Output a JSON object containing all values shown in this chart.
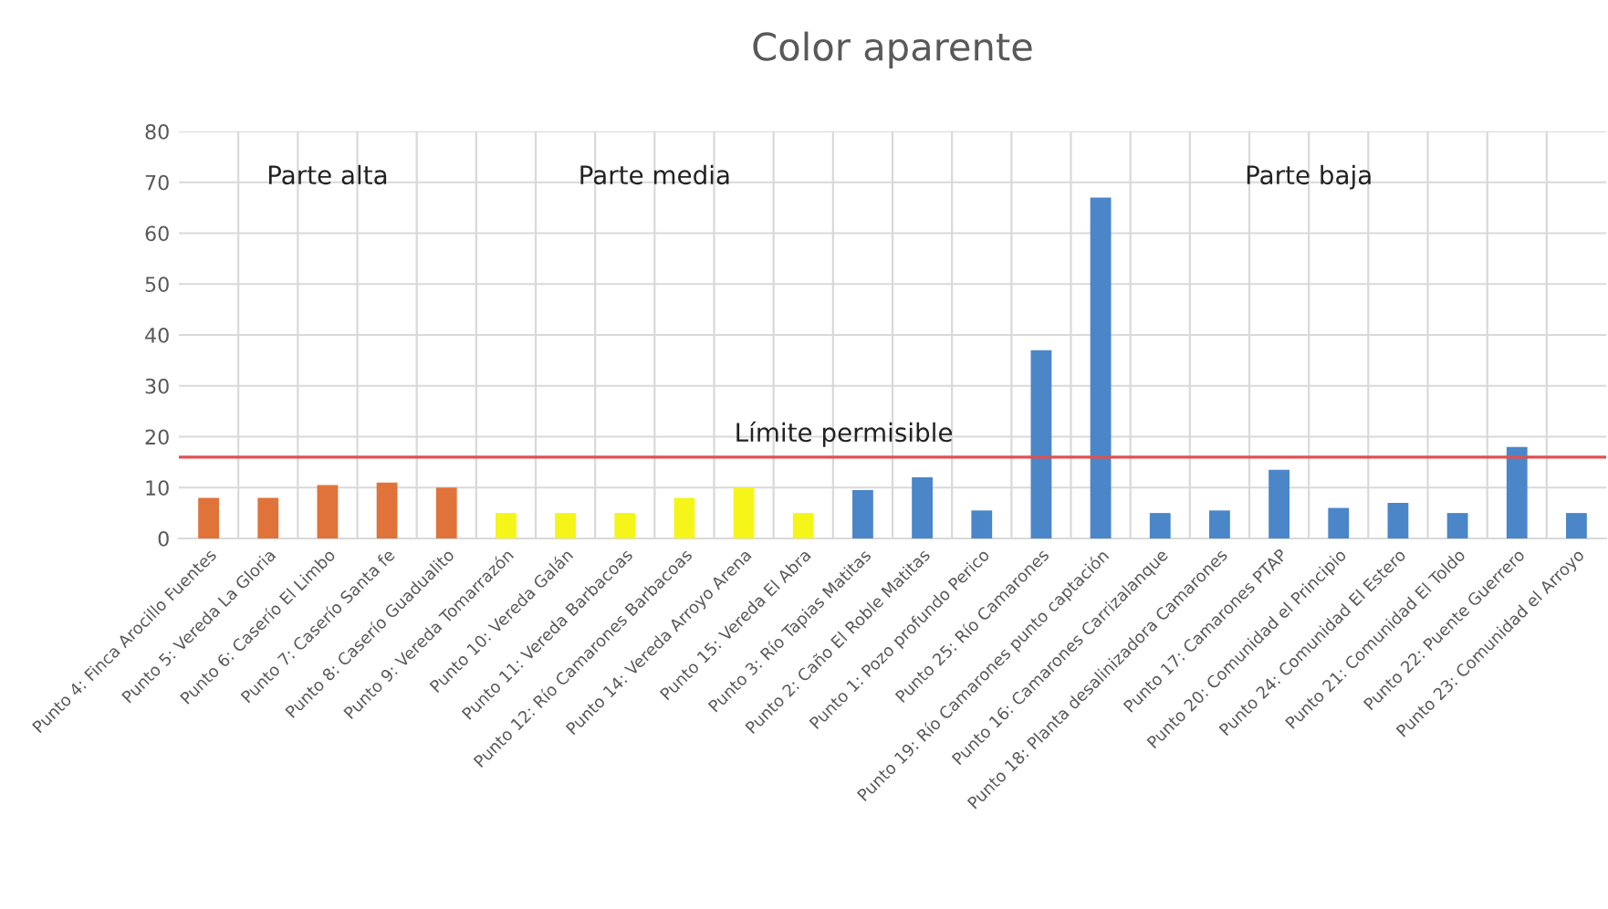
{
  "chart_data": {
    "type": "bar",
    "title": "Color aparente",
    "categories": [
      "Punto 4: Finca Arocillo Fuentes",
      "Punto 5: Vereda La Gloria",
      "Punto 6: Caserío El Limbo",
      "Punto 7: Caserío Santa fe",
      "Punto 8: Caserío Guadualito",
      "Punto 9: Vereda Tomarrazón",
      "Punto 10: Vereda Galán",
      "Punto 11: Vereda Barbacoas",
      "Punto 12: Río Camarones Barbacoas",
      "Punto 14: Vereda Arroyo Arena",
      "Punto 15: Vereda El Abra",
      "Punto 3: Río Tapias Matitas",
      "Punto 2: Caño El Roble Matitas",
      "Punto 1: Pozo profundo Perico",
      "Punto 25: Río Camarones",
      "Punto 19: Río Camarones punto captación",
      "Punto 16: Camarones Carrizalanque",
      "Punto 18: Planta desalinizadora Camarones",
      "Punto 17: Camarones PTAP",
      "Punto 20: Comunidad el Principio",
      "Punto 24: Comunidad El Estero",
      "Punto 21: Comunidad El Toldo",
      "Punto 22: Puente Guerrero",
      "Punto 23: Comunidad el Arroyo"
    ],
    "values": [
      8,
      8,
      10.5,
      11,
      10,
      5,
      5,
      5,
      8,
      10,
      5,
      9.5,
      12,
      5.5,
      37,
      67,
      5,
      5.5,
      13.5,
      6,
      7,
      5,
      18,
      5
    ],
    "colors": [
      "#e0733a",
      "#e0733a",
      "#e0733a",
      "#e0733a",
      "#e0733a",
      "#f5f51a",
      "#f5f51a",
      "#f5f51a",
      "#f5f51a",
      "#f5f51a",
      "#f5f51a",
      "#4a86c8",
      "#4a86c8",
      "#4a86c8",
      "#4a86c8",
      "#4a86c8",
      "#4a86c8",
      "#4a86c8",
      "#4a86c8",
      "#4a86c8",
      "#4a86c8",
      "#4a86c8",
      "#4a86c8",
      "#4a86c8"
    ],
    "ylim": [
      0,
      80
    ],
    "yticks": [
      0,
      10,
      20,
      30,
      40,
      50,
      60,
      70,
      80
    ],
    "grid": true,
    "ref_lines": [
      {
        "axis": "y",
        "value": 16,
        "label": "Límite permisible",
        "color": "#e05050"
      }
    ],
    "annotations": [
      "Parte alta",
      "Parte media",
      "Parte baja"
    ]
  }
}
